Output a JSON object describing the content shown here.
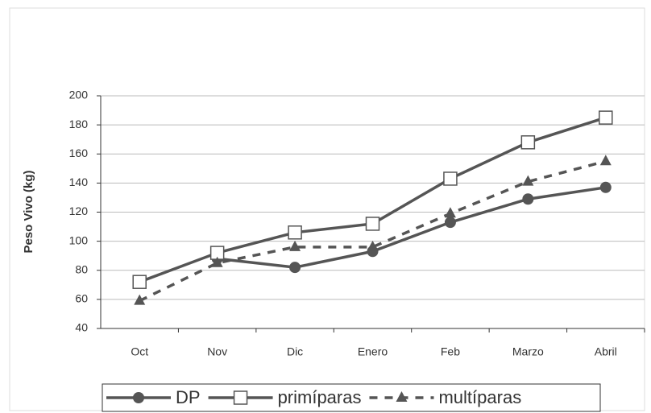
{
  "chart_data": {
    "type": "line",
    "y_label": "Peso Vivo (kg)",
    "categories": [
      "Oct",
      "Nov",
      "Dic",
      "Enero",
      "Feb",
      "Marzo",
      "Abril"
    ],
    "series": [
      {
        "name": "DP",
        "color": "#555555",
        "marker": "circle",
        "dashed": false,
        "values": [
          null,
          88,
          82,
          93,
          113,
          129,
          137
        ]
      },
      {
        "name": "primíparas",
        "color": "#555555",
        "marker": "square",
        "dashed": false,
        "values": [
          72,
          92,
          106,
          112,
          143,
          168,
          185
        ]
      },
      {
        "name": "multíparas",
        "color": "#555555",
        "marker": "triangle",
        "dashed": true,
        "values": [
          59,
          85,
          96,
          96,
          119,
          141,
          155
        ]
      }
    ],
    "ylim": [
      40,
      200
    ],
    "yticks": [
      40,
      60,
      80,
      100,
      120,
      140,
      160,
      180,
      200
    ],
    "grid": true,
    "legend": "bottom"
  }
}
